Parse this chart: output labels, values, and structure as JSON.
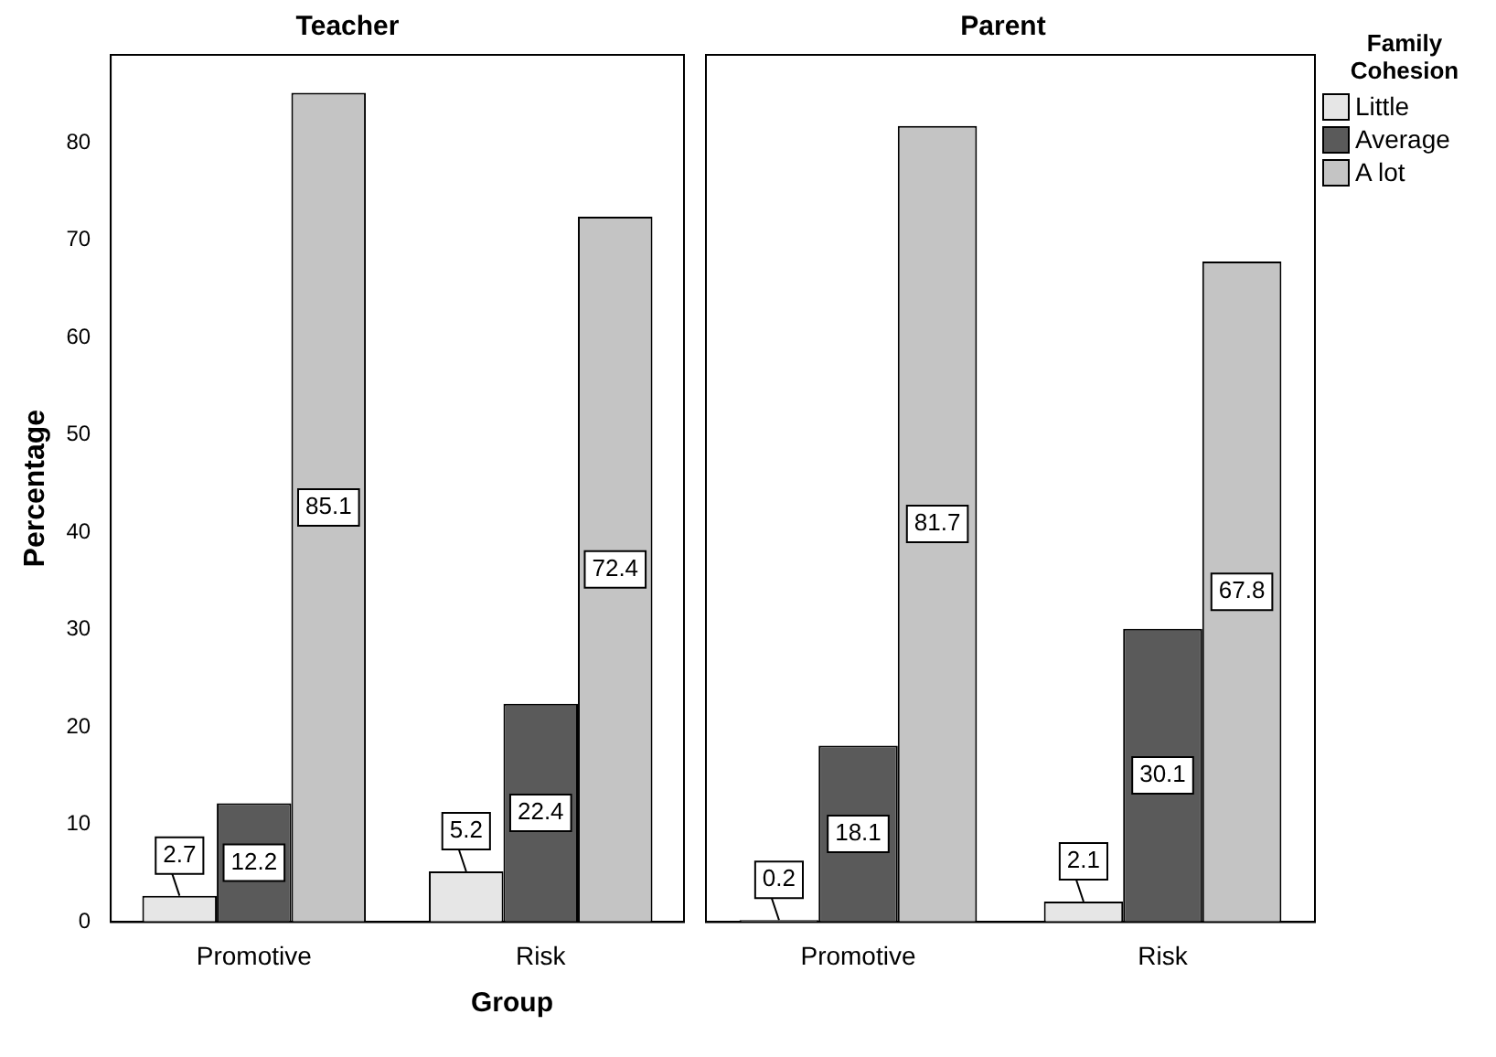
{
  "chart_data": [
    {
      "type": "bar",
      "title": "Teacher",
      "ylabel": "Percentage",
      "xlabel": "Group",
      "categories": [
        "Promotive",
        "Risk"
      ],
      "ylim": [
        0,
        89
      ],
      "yticks": [
        0,
        10,
        20,
        30,
        40,
        50,
        60,
        70,
        80
      ],
      "grid": false,
      "legend": false,
      "data_labels": true,
      "series": [
        {
          "color": "#e6e6e6",
          "values": [
            2.7,
            5.2
          ]
        },
        {
          "color": "#5a5a5a",
          "values": [
            12.2,
            22.4
          ]
        },
        {
          "color": "#c4c4c4",
          "values": [
            85.1,
            72.4
          ]
        }
      ]
    },
    {
      "type": "bar",
      "title": "Parent",
      "categories": [
        "Promotive",
        "Risk"
      ],
      "ylim": [
        0,
        89
      ],
      "yticks": [
        0,
        10,
        20,
        30,
        40,
        50,
        60,
        70,
        80
      ],
      "grid": false,
      "legend": "right",
      "legend_title": "Family Cohesion",
      "tick_labels": "x",
      "data_labels": true,
      "series": [
        {
          "name": "Little",
          "color": "#e6e6e6",
          "values": [
            0.2,
            2.1
          ]
        },
        {
          "name": "Average",
          "color": "#5a5a5a",
          "values": [
            18.1,
            30.1
          ]
        },
        {
          "name": "A lot",
          "color": "#c4c4c4",
          "values": [
            81.7,
            67.8
          ]
        }
      ]
    }
  ]
}
